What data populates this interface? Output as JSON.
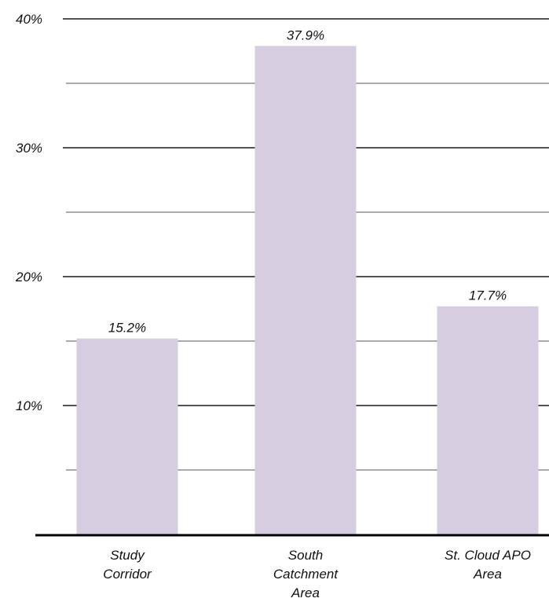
{
  "chart_data": {
    "type": "bar",
    "categories": [
      [
        "Study",
        "Corridor"
      ],
      [
        "South",
        "Catchment",
        "Area"
      ],
      [
        "St. Cloud APO",
        "Area"
      ]
    ],
    "values": [
      15.2,
      37.9,
      17.7
    ],
    "data_labels": [
      "15.2%",
      "37.9%",
      "17.7%"
    ],
    "ylim": [
      0,
      40
    ],
    "yticks": [
      {
        "value": 10,
        "label": "10%"
      },
      {
        "value": 20,
        "label": "20%"
      },
      {
        "value": 30,
        "label": "30%"
      },
      {
        "value": 40,
        "label": "40%"
      }
    ],
    "minor_gridlines": [
      5,
      15,
      25,
      35
    ],
    "grid": true,
    "bar_color": "#d6cde0",
    "major_grid_color": "#1a1a1a",
    "minor_grid_color": "#555555",
    "axis_color": "#000000",
    "text_color": "#111111"
  }
}
